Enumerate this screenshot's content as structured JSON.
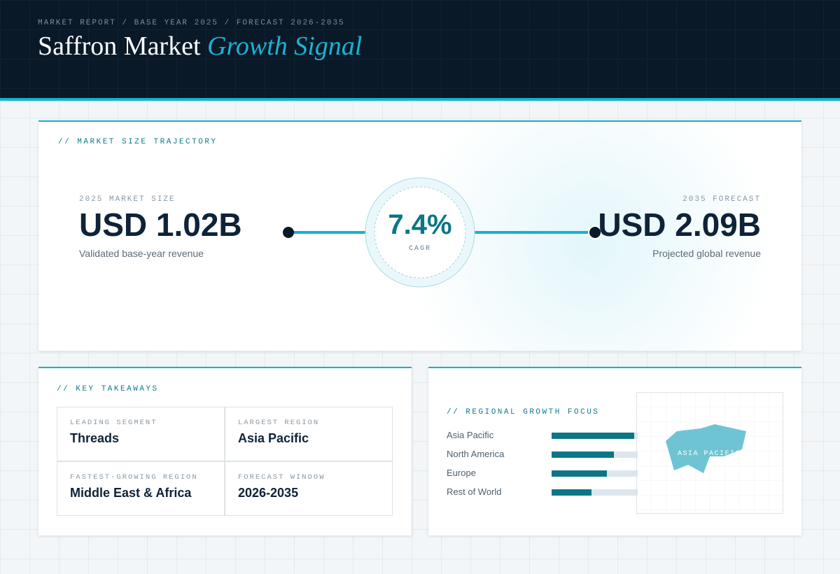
{
  "header": {
    "kicker": "MARKET REPORT / BASE YEAR 2025 / FORECAST 2026-2035",
    "title": "Saffron Market",
    "title_accent": "Growth Signal"
  },
  "trajectory": {
    "heading": "// MARKET SIZE TRAJECTORY",
    "start": {
      "label": "2025 MARKET SIZE",
      "value": "USD 1.02B",
      "caption": "Validated base-year revenue"
    },
    "cagr": {
      "value": "7.4%",
      "label": "CAGR"
    },
    "end": {
      "label": "2035 FORECAST",
      "value": "USD 2.09B",
      "caption": "Projected global revenue"
    }
  },
  "takeaways": {
    "heading": "// KEY TAKEAWAYS",
    "items": [
      {
        "label": "LEADING SEGMENT",
        "value": "Threads"
      },
      {
        "label": "LARGEST REGION",
        "value": "Asia Pacific"
      },
      {
        "label": "FASTEST-GROWING REGION",
        "value": "Middle East & Africa"
      },
      {
        "label": "FORECAST WINDOW",
        "value": "2026-2035"
      }
    ]
  },
  "regional": {
    "heading": "// REGIONAL GROWTH FOCUS",
    "regions": [
      {
        "name": "Asia Pacific",
        "value": 96
      },
      {
        "name": "North America",
        "value": 72
      },
      {
        "name": "Europe",
        "value": 64
      },
      {
        "name": "Rest of World",
        "value": 46
      }
    ],
    "map_label": "ASIA PACIFIC"
  }
}
